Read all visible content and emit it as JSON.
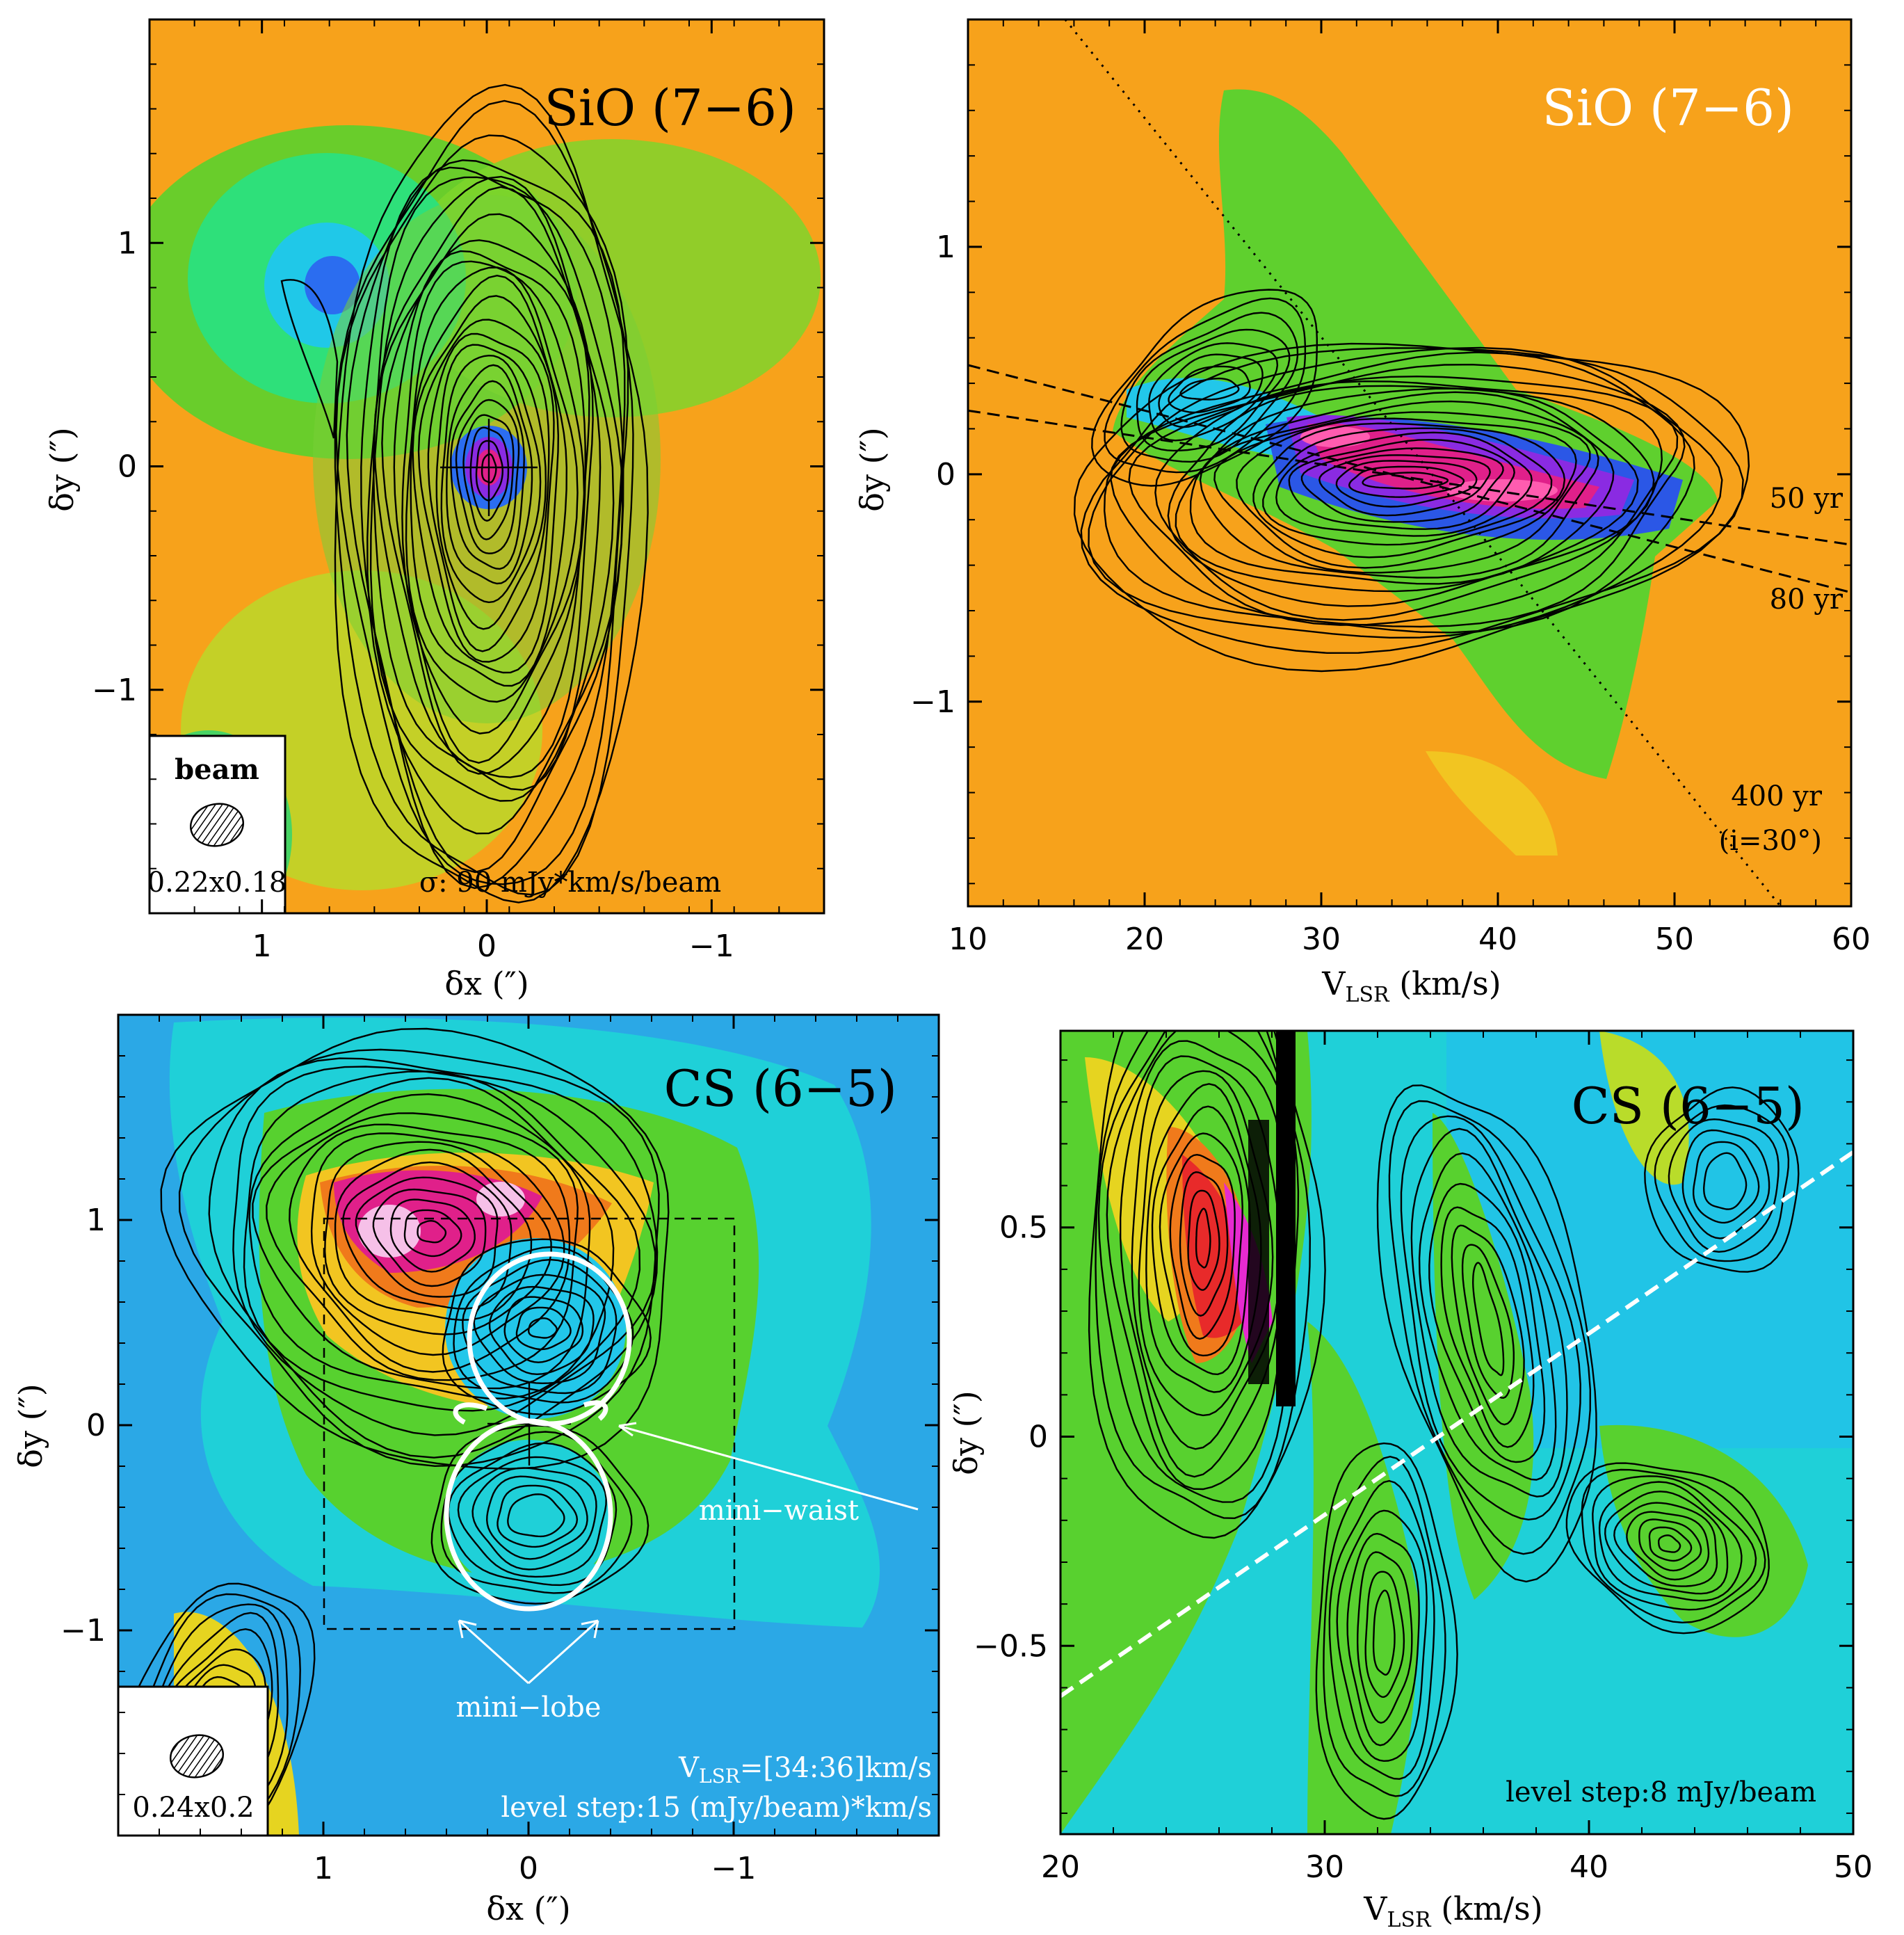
{
  "figure": {
    "panels": [
      {
        "id": "sio-map",
        "title": "SiO (7−6)",
        "title_color": "#000000",
        "xlabel": "δx (″)",
        "ylabel": "δy (″)",
        "beam_label": "beam",
        "beam_size": "0.22x0.18",
        "sigma_note": "σ: 90 mJy*km/s/beam"
      },
      {
        "id": "sio-pv",
        "title": "SiO (7−6)",
        "title_color": "#ffffff",
        "xlabel": "V",
        "xlabel_sub": "LSR",
        "xlabel_unit": " (km/s)",
        "ylabel": "δy (″)",
        "line_labels": [
          "50 yr",
          "80 yr",
          "400 yr",
          "(i=30°)"
        ]
      },
      {
        "id": "cs-map",
        "title": "CS (6−5)",
        "title_color": "#000000",
        "xlabel": "δx (″)",
        "ylabel": "δy (″)",
        "beam_size": "0.24x0.2",
        "annotation_waist": "mini−waist",
        "annotation_lobe": "mini−lobe",
        "vlsr_note_prefix": "V",
        "vlsr_note_sub": "LSR",
        "vlsr_note_suffix": "=[34:36]km/s",
        "level_note": "level step:15 (mJy/beam)*km/s"
      },
      {
        "id": "cs-pv",
        "title": "CS (6−5)",
        "title_color": "#000000",
        "xlabel": "V",
        "xlabel_sub": "LSR",
        "xlabel_unit": " (km/s)",
        "ylabel": "δy (″)",
        "level_note": "level step:8 mJy/beam"
      }
    ]
  },
  "chart_data": [
    {
      "type": "heatmap",
      "title": "SiO (7−6)",
      "kind": "integrated intensity map with contours",
      "xlabel": "δx (″)",
      "ylabel": "δy (″)",
      "xlim": [
        1.5,
        -1.5
      ],
      "ylim": [
        -2.0,
        2.0
      ],
      "x_ticks": [
        1,
        0,
        -1
      ],
      "x_tick_labels": [
        "1",
        "0",
        "−1"
      ],
      "y_ticks": [
        -1,
        0,
        1
      ],
      "y_tick_labels": [
        "−1",
        "0",
        "1"
      ],
      "beam": "0.22x0.18",
      "sigma": "σ: 90 mJy*km/s/beam",
      "peak_position": [
        0,
        0
      ]
    },
    {
      "type": "heatmap",
      "title": "SiO (7−6)",
      "kind": "position-velocity diagram with contours",
      "xlabel": "VLSR (km/s)",
      "ylabel": "δy (″)",
      "xlim": [
        10,
        60
      ],
      "ylim": [
        -1.9,
        2.0
      ],
      "x_ticks": [
        10,
        20,
        30,
        40,
        50,
        60
      ],
      "y_ticks": [
        -1,
        0,
        1
      ],
      "y_tick_labels": [
        "−1",
        "0",
        "1"
      ],
      "lines": [
        {
          "label": "50 yr",
          "style": "dashed",
          "points": [
            [
              10,
              0.28
            ],
            [
              60,
              -0.31
            ]
          ]
        },
        {
          "label": "80 yr",
          "style": "dashed",
          "points": [
            [
              10,
              0.48
            ],
            [
              60,
              -0.52
            ]
          ]
        },
        {
          "label": "400 yr (i=30°)",
          "style": "dotted",
          "points": [
            [
              15.5,
              2.0
            ],
            [
              56,
              -1.9
            ]
          ]
        }
      ]
    },
    {
      "type": "heatmap",
      "title": "CS (6−5)",
      "kind": "channel map with contours",
      "xlabel": "δx (″)",
      "ylabel": "δy (″)",
      "xlim": [
        2.0,
        -2.0
      ],
      "ylim": [
        -2.0,
        2.0
      ],
      "x_ticks": [
        1,
        0,
        -1
      ],
      "x_tick_labels": [
        "1",
        "0",
        "−1"
      ],
      "y_ticks": [
        -1,
        0,
        1
      ],
      "y_tick_labels": [
        "−1",
        "0",
        "1"
      ],
      "beam": "0.24x0.2",
      "velocity_range": "VLSR=[34:36]km/s",
      "level_step": "level step:15 (mJy/beam)*km/s",
      "box": {
        "x": [
          1,
          -1
        ],
        "y": [
          -1,
          1
        ]
      },
      "ellipses": [
        {
          "center": [
            0.1,
            0.5
          ],
          "rx": 0.4,
          "ry": 0.45
        },
        {
          "center": [
            0.0,
            -0.45
          ],
          "rx": 0.4,
          "ry": 0.45
        }
      ],
      "annotations": [
        "mini−waist",
        "mini−lobe"
      ]
    },
    {
      "type": "heatmap",
      "title": "CS (6−5)",
      "kind": "position-velocity diagram with contours",
      "xlabel": "VLSR (km/s)",
      "ylabel": "δy (″)",
      "xlim": [
        20,
        50
      ],
      "ylim": [
        -0.95,
        0.97
      ],
      "x_ticks": [
        20,
        30,
        40,
        50
      ],
      "y_ticks": [
        -0.5,
        0,
        0.5
      ],
      "y_tick_labels": [
        "−0.5",
        "0",
        "0.5"
      ],
      "level_step": "level step:8 mJy/beam",
      "lines": [
        {
          "style": "dashed",
          "color": "#ffffff",
          "points": [
            [
              20,
              -0.62
            ],
            [
              50,
              0.68
            ]
          ]
        }
      ]
    }
  ]
}
